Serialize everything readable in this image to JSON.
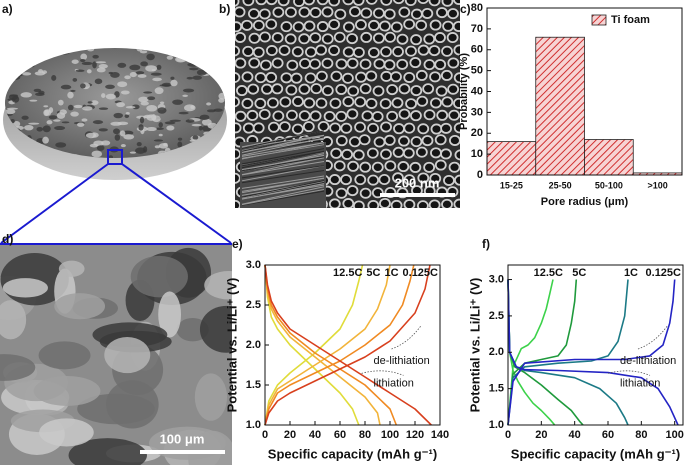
{
  "images": [
    {
      "panel_label": "a)"
    },
    {
      "panel_label": "b)",
      "scale_bar": "200 nm"
    },
    {
      "panel_label": "d)",
      "scale_bar": "100 μm"
    }
  ],
  "chart_data": [
    {
      "type": "bar",
      "panel_label": "c)",
      "categories": [
        "15-25",
        "25-50",
        "50-100",
        ">100"
      ],
      "series": [
        {
          "name": "Ti foam",
          "color": "#d03030",
          "values": [
            16,
            66,
            17,
            1
          ]
        }
      ],
      "hatch": true,
      "xlabel": "Pore radius (μm)",
      "ylabel": "Probability (%)",
      "ylim": [
        0,
        80
      ],
      "yticks": [
        0,
        10,
        20,
        30,
        40,
        50,
        60,
        70,
        80
      ],
      "legend": "upper right"
    },
    {
      "type": "line",
      "panel_label": "e)",
      "xlabel": "Specific capacity (mAh g⁻¹)",
      "ylabel": "Potential vs. Li/Li⁺ (V)",
      "xlim": [
        0,
        140
      ],
      "xticks": [
        0,
        20,
        40,
        60,
        80,
        100,
        120,
        140
      ],
      "ylim": [
        1.0,
        3.0
      ],
      "yticks": [
        {
          "value": 1.0,
          "label": "1.0"
        },
        {
          "value": 1.5,
          "label": "1.5"
        },
        {
          "value": 2.0,
          "label": "2.0"
        },
        {
          "value": 2.5,
          "label": "2.5"
        },
        {
          "value": 3.0,
          "label": "3.0"
        }
      ],
      "annotations": [
        "de-lithiation",
        "lithiation"
      ],
      "series": [
        {
          "name": "12.5C",
          "color": "#e0dc3a",
          "lithiation": {
            "x": [
              0,
              2,
              5,
              10,
              20,
              30,
              40,
              50,
              60,
              70,
              75
            ],
            "y": [
              3.0,
              2.6,
              2.35,
              2.2,
              2.0,
              1.85,
              1.7,
              1.55,
              1.4,
              1.2,
              1.0
            ]
          },
          "delithiation": {
            "x": [
              0,
              3,
              10,
              20,
              40,
              60,
              70,
              75,
              78
            ],
            "y": [
              1.0,
              1.3,
              1.5,
              1.65,
              1.9,
              2.2,
              2.5,
              2.8,
              3.0
            ]
          }
        },
        {
          "name": "5C",
          "color": "#f2b43a",
          "lithiation": {
            "x": [
              0,
              2,
              5,
              10,
              20,
              40,
              60,
              80,
              90,
              92
            ],
            "y": [
              3.0,
              2.65,
              2.45,
              2.3,
              2.1,
              1.85,
              1.6,
              1.35,
              1.15,
              1.0
            ]
          },
          "delithiation": {
            "x": [
              0,
              3,
              10,
              20,
              40,
              60,
              80,
              90,
              97,
              100
            ],
            "y": [
              1.0,
              1.25,
              1.45,
              1.55,
              1.75,
              1.95,
              2.2,
              2.45,
              2.75,
              3.0
            ]
          }
        },
        {
          "name": "1C",
          "color": "#f08a22",
          "lithiation": {
            "x": [
              0,
              2,
              5,
              10,
              20,
              40,
              60,
              80,
              100,
              105
            ],
            "y": [
              3.0,
              2.7,
              2.5,
              2.35,
              2.15,
              1.9,
              1.7,
              1.5,
              1.2,
              1.0
            ]
          },
          "delithiation": {
            "x": [
              0,
              3,
              10,
              20,
              40,
              60,
              80,
              100,
              110,
              116,
              119
            ],
            "y": [
              1.0,
              1.2,
              1.4,
              1.5,
              1.65,
              1.8,
              2.0,
              2.25,
              2.5,
              2.8,
              3.0
            ]
          }
        },
        {
          "name": "0.125C",
          "color": "#d8401e",
          "lithiation": {
            "x": [
              0,
              2,
              5,
              10,
              20,
              40,
              60,
              80,
              100,
              120,
              133
            ],
            "y": [
              3.0,
              2.75,
              2.55,
              2.4,
              2.2,
              2.0,
              1.8,
              1.6,
              1.4,
              1.2,
              1.0
            ]
          },
          "delithiation": {
            "x": [
              0,
              3,
              10,
              20,
              40,
              60,
              80,
              100,
              120,
              128,
              132
            ],
            "y": [
              1.0,
              1.15,
              1.3,
              1.4,
              1.55,
              1.7,
              1.85,
              2.05,
              2.4,
              2.7,
              3.0
            ]
          }
        }
      ]
    },
    {
      "type": "line",
      "panel_label": "f)",
      "xlabel": "Specific capacity (mAh g⁻¹)",
      "ylabel": "Potential vs. Li/Li⁺ (V)",
      "xlim": [
        0,
        105
      ],
      "xticks": [
        0,
        20,
        40,
        60,
        80,
        100
      ],
      "ylim": [
        1.0,
        3.2
      ],
      "yticks": [
        {
          "value": 1.0,
          "label": "1.0"
        },
        {
          "value": 1.5,
          "label": "1.5"
        },
        {
          "value": 2.0,
          "label": "2.0"
        },
        {
          "value": 2.5,
          "label": "2.5"
        },
        {
          "value": 3.0,
          "label": "3.0"
        }
      ],
      "annotations": [
        "de-lithiation",
        "lithiation"
      ],
      "series": [
        {
          "name": "12.5C",
          "color": "#3cd24a",
          "lithiation": {
            "x": [
              0,
              1,
              3,
              6,
              10,
              15,
              20,
              25,
              28
            ],
            "y": [
              3.0,
              2.0,
              1.75,
              1.6,
              1.45,
              1.3,
              1.2,
              1.08,
              1.0
            ]
          },
          "delithiation": {
            "x": [
              0,
              3,
              8,
              12,
              16,
              20,
              23,
              25,
              27
            ],
            "y": [
              1.0,
              1.8,
              2.05,
              2.1,
              2.2,
              2.4,
              2.6,
              2.8,
              3.0
            ]
          }
        },
        {
          "name": "5C",
          "color": "#1f9a3c",
          "lithiation": {
            "x": [
              0,
              1,
              4,
              10,
              20,
              30,
              38,
              43,
              45
            ],
            "y": [
              3.0,
              2.0,
              1.8,
              1.72,
              1.55,
              1.35,
              1.2,
              1.05,
              1.0
            ]
          },
          "delithiation": {
            "x": [
              0,
              3,
              10,
              20,
              30,
              35,
              38,
              40,
              41
            ],
            "y": [
              1.0,
              1.7,
              1.85,
              1.9,
              1.95,
              2.1,
              2.4,
              2.7,
              3.0
            ]
          }
        },
        {
          "name": "1C",
          "color": "#1c7a86",
          "lithiation": {
            "x": [
              0,
              1,
              5,
              10,
              20,
              40,
              55,
              65,
              70,
              72
            ],
            "y": [
              3.0,
              2.0,
              1.8,
              1.75,
              1.72,
              1.65,
              1.5,
              1.3,
              1.1,
              1.0
            ]
          },
          "delithiation": {
            "x": [
              0,
              3,
              10,
              30,
              50,
              60,
              66,
              70,
              72
            ],
            "y": [
              1.0,
              1.65,
              1.8,
              1.85,
              1.88,
              1.95,
              2.15,
              2.5,
              3.0
            ]
          }
        },
        {
          "name": "0.125C",
          "color": "#2424c4",
          "lithiation": {
            "x": [
              0,
              1,
              5,
              10,
              30,
              60,
              80,
              90,
              97,
              102
            ],
            "y": [
              3.0,
              2.0,
              1.8,
              1.76,
              1.75,
              1.72,
              1.65,
              1.5,
              1.25,
              1.0
            ]
          },
          "delithiation": {
            "x": [
              0,
              3,
              10,
              40,
              70,
              85,
              93,
              97,
              99,
              100
            ],
            "y": [
              1.0,
              1.6,
              1.85,
              1.9,
              1.9,
              1.95,
              2.1,
              2.4,
              2.7,
              3.0
            ]
          }
        }
      ]
    }
  ]
}
